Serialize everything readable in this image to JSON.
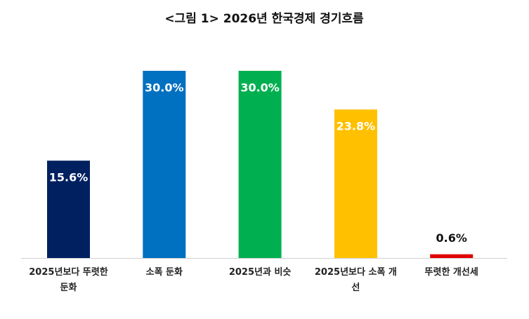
{
  "chart_data": {
    "type": "bar",
    "title": "<그림 1> 2026년 한국경제 경기흐름",
    "categories": [
      "2025년보다 뚜렷한 둔화",
      "소폭 둔화",
      "2025년과 비슷",
      "2025년보다 소폭 개선",
      "뚜렷한 개선세"
    ],
    "values": [
      15.6,
      30.0,
      30.0,
      23.8,
      0.6
    ],
    "value_labels": [
      "15.6%",
      "30.0%",
      "30.0%",
      "23.8%",
      "0.6%"
    ],
    "colors": [
      "#002060",
      "#0070c0",
      "#00b050",
      "#ffc000",
      "#e00000"
    ]
  }
}
